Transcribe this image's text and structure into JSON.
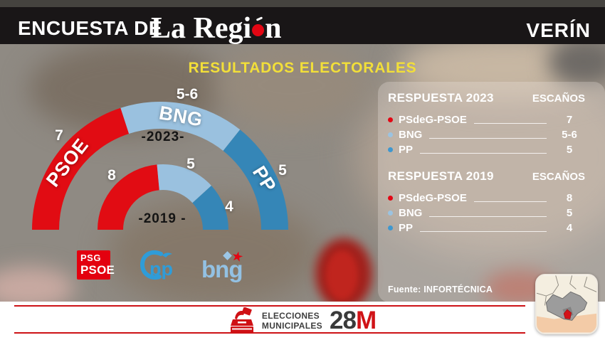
{
  "header": {
    "show_title": "ENCUESTA DE",
    "brand_full": "La Región",
    "brand_prefix": "La Regi",
    "brand_suffix": "n",
    "location": "VERÍN"
  },
  "main_title": "RESULTADOS ELECTORALES",
  "colors": {
    "psoe": "#e30613",
    "bng_arc": "#9ac1df",
    "pp_arc": "#3586b7",
    "bng_dot": "#9bc3e1",
    "pp_dot": "#3e97cf",
    "accent_red": "#cd1216",
    "title_yellow": "#f2df39"
  },
  "chart_data": [
    {
      "id": "2023",
      "type": "semidonut",
      "year_label": "-2023-",
      "segments": [
        {
          "party": "PSOE",
          "seats": 7,
          "seats_label": "7",
          "color": "#e10c13"
        },
        {
          "party": "BNG",
          "seats": 5.5,
          "seats_label": "5-6",
          "color": "#9ac1df"
        },
        {
          "party": "PP",
          "seats": 5,
          "seats_label": "5",
          "color": "#3586b7"
        }
      ]
    },
    {
      "id": "2019",
      "type": "semidonut",
      "year_label": "-2019 -",
      "segments": [
        {
          "party": "PSOE",
          "seats": 8,
          "seats_label": "8",
          "color": "#e10c13"
        },
        {
          "party": "BNG",
          "seats": 5,
          "seats_label": "5",
          "color": "#9ac1df"
        },
        {
          "party": "PP",
          "seats": 4,
          "seats_label": "4",
          "color": "#3586b7"
        }
      ]
    }
  ],
  "logos": {
    "psoe_line1": "PSG",
    "psoe_line2": "PSOE",
    "pp": "pp",
    "bng": "bng",
    "bng_star": "★"
  },
  "panel": {
    "blocks": [
      {
        "title": "RESPUESTA 2023",
        "col_header": "ESCAÑOS",
        "rows": [
          {
            "party": "PSdeG-PSOE",
            "seats": "7"
          },
          {
            "party": "BNG",
            "seats": "5-6"
          },
          {
            "party": "PP",
            "seats": "5"
          }
        ]
      },
      {
        "title": "RESPUESTA 2019",
        "col_header": "ESCAÑOS",
        "rows": [
          {
            "party": "PSdeG-PSOE",
            "seats": "8"
          },
          {
            "party": "BNG",
            "seats": "5"
          },
          {
            "party": "PP",
            "seats": "4"
          }
        ]
      }
    ],
    "source": "Fuente: INFORTÉCNICA"
  },
  "footer": {
    "line1": "ELECCIONES",
    "line2": "MUNICIPALES",
    "date_number": "28",
    "date_letter": "M"
  }
}
